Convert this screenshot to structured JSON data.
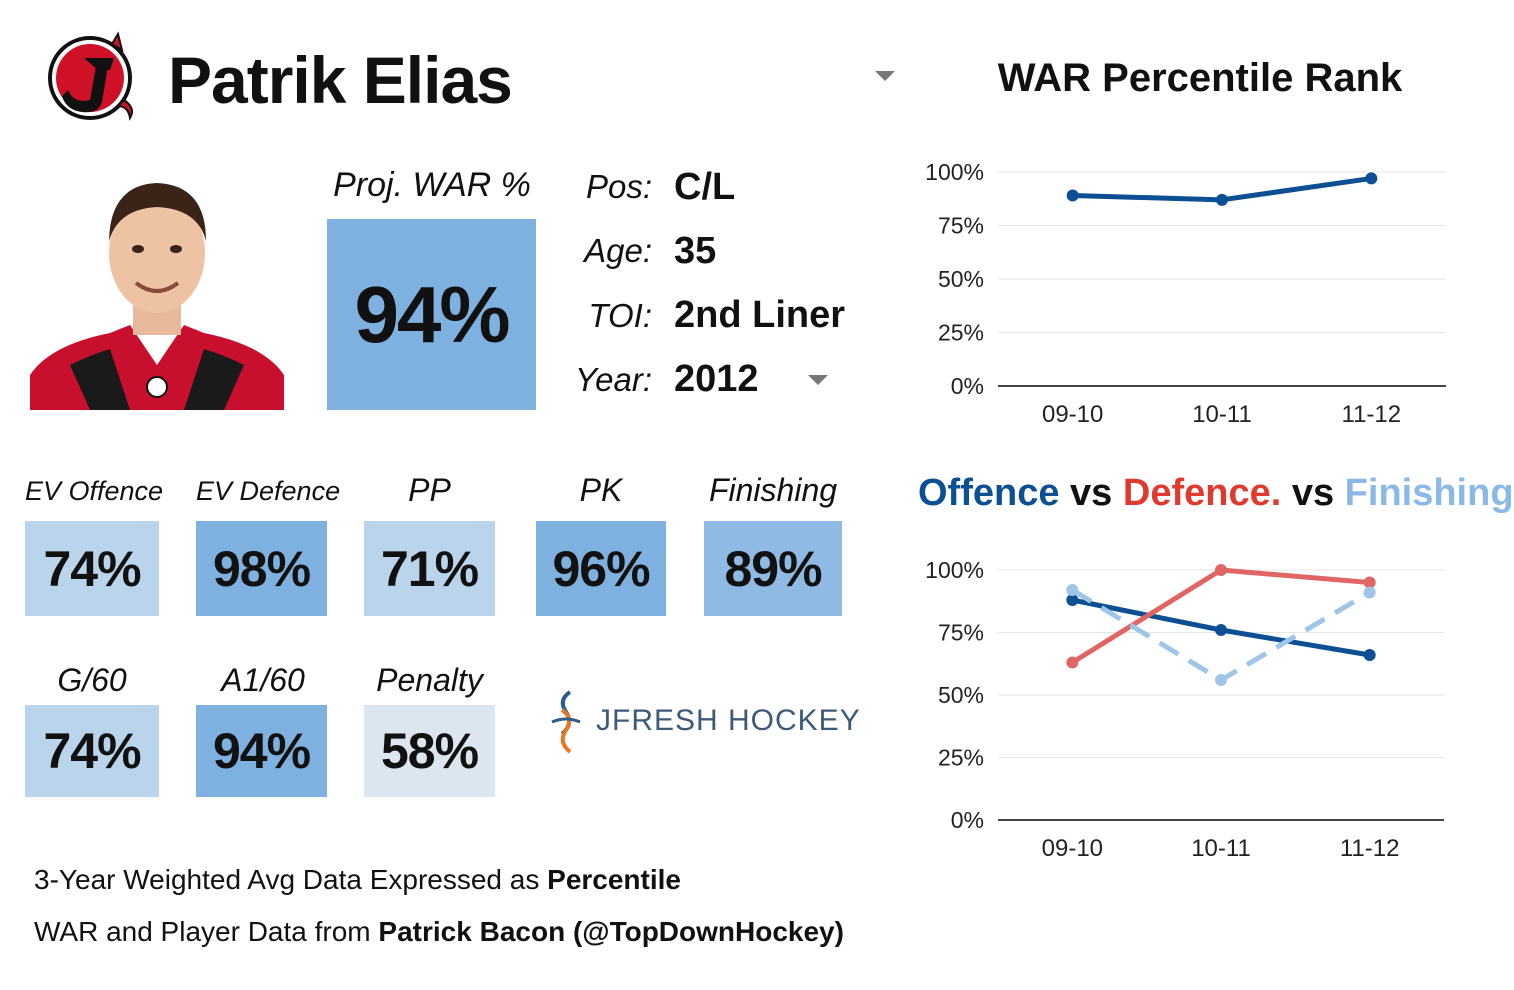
{
  "header": {
    "player_name": "Patrik Elias",
    "team_logo": "new-jersey-devils-logo"
  },
  "photo": {
    "icon": "player-headshot-photo"
  },
  "projection": {
    "label": "Proj. WAR %",
    "value": "94%",
    "color": "#7eb1df"
  },
  "info": {
    "pos_label": "Pos:",
    "pos_value": "C/L",
    "age_label": "Age:",
    "age_value": "35",
    "toi_label": "TOI:",
    "toi_value": "2nd Liner",
    "year_label": "Year:",
    "year_value": "2012"
  },
  "metrics": [
    {
      "label": "EV Offence",
      "value": "74%",
      "color": "#bad4ec"
    },
    {
      "label": "EV Defence",
      "value": "98%",
      "color": "#7eb1df"
    },
    {
      "label": "PP",
      "value": "71%",
      "color": "#bad4ec"
    },
    {
      "label": "PK",
      "value": "96%",
      "color": "#7eb1df"
    },
    {
      "label": "Finishing",
      "value": "89%",
      "color": "#8fbae3"
    },
    {
      "label": "G/60",
      "value": "74%",
      "color": "#bad4ec"
    },
    {
      "label": "A1/60",
      "value": "94%",
      "color": "#7eb1df"
    },
    {
      "label": "Penalty",
      "value": "58%",
      "color": "#dbe6f1"
    }
  ],
  "brand": {
    "text": "JFRESH HOCKEY"
  },
  "footer": {
    "line1_prefix": "3-Year Weighted Avg Data Expressed as ",
    "line1_bold": "Percentile",
    "line2_prefix": "WAR and Player Data from ",
    "line2_bold": "Patrick Bacon (@TopDownHockey)"
  },
  "chart_data": [
    {
      "type": "line",
      "title": "WAR Percentile Rank",
      "categories": [
        "09-10",
        "10-11",
        "11-12"
      ],
      "yticks": [
        "0%",
        "25%",
        "50%",
        "75%",
        "100%"
      ],
      "ylim": [
        0,
        100
      ],
      "grid": true,
      "series": [
        {
          "values": [
            89,
            87,
            97
          ],
          "color": "#0d4f93",
          "dashed": false
        }
      ]
    },
    {
      "type": "line",
      "title_parts": [
        {
          "text": "Offence",
          "color": "#0d4f93"
        },
        {
          "text": " vs ",
          "color": "#111111"
        },
        {
          "text": "Defence.",
          "color": "#e03a2e"
        },
        {
          "text": " vs ",
          "color": "#111111"
        },
        {
          "text": "Finishing",
          "color": "#8ab9e6"
        }
      ],
      "categories": [
        "09-10",
        "10-11",
        "11-12"
      ],
      "yticks": [
        "0%",
        "25%",
        "50%",
        "75%",
        "100%"
      ],
      "ylim": [
        0,
        100
      ],
      "grid": true,
      "series": [
        {
          "name": "Offence",
          "values": [
            88,
            76,
            66
          ],
          "color": "#0d4f93",
          "dashed": false
        },
        {
          "name": "Defence.",
          "values": [
            63,
            100,
            95
          ],
          "color": "#e06666",
          "dashed": false
        },
        {
          "name": "Finishing",
          "values": [
            92,
            56,
            91
          ],
          "color": "#9fc5e8",
          "dashed": true
        }
      ]
    }
  ]
}
